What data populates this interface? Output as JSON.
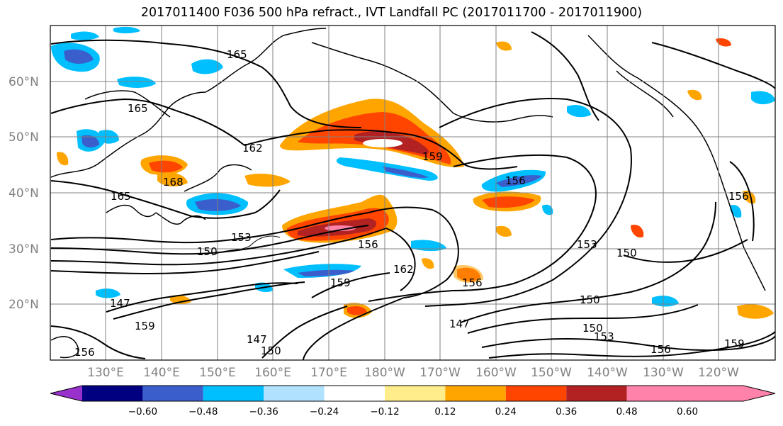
{
  "title": "2017011400 F036 500 hPa refract., IVT Landfall PC (2017011700 - 2017011900)",
  "lat_labels": [
    "60°N",
    "50°N",
    "40°N",
    "30°N",
    "20°N"
  ],
  "lon_labels": [
    "130°E",
    "140°E",
    "150°E",
    "160°E",
    "170°E",
    "180°W",
    "170°W",
    "160°W",
    "150°W",
    "140°W",
    "130°W",
    "120°W"
  ],
  "contour_labels": [
    "165",
    "165",
    "165",
    "162",
    "168",
    "159",
    "156",
    "153",
    "150",
    "156",
    "147",
    "159",
    "162",
    "159",
    "147",
    "150",
    "156",
    "147",
    "150",
    "153",
    "150",
    "156",
    "159",
    "156",
    "156",
    "150",
    "153"
  ],
  "colorbar": {
    "colors": [
      "#9932cc",
      "#000080",
      "#3a5fcd",
      "#00bfff",
      "#b0e2ff",
      "#ffffff",
      "#ffec8b",
      "#ffa500",
      "#ff4500",
      "#b22222",
      "#ff82ab"
    ],
    "tick_labels": [
      "−0.60",
      "−0.48",
      "−0.36",
      "−0.24",
      "−0.12",
      "0.12",
      "0.24",
      "0.36",
      "0.48",
      "0.60"
    ]
  }
}
